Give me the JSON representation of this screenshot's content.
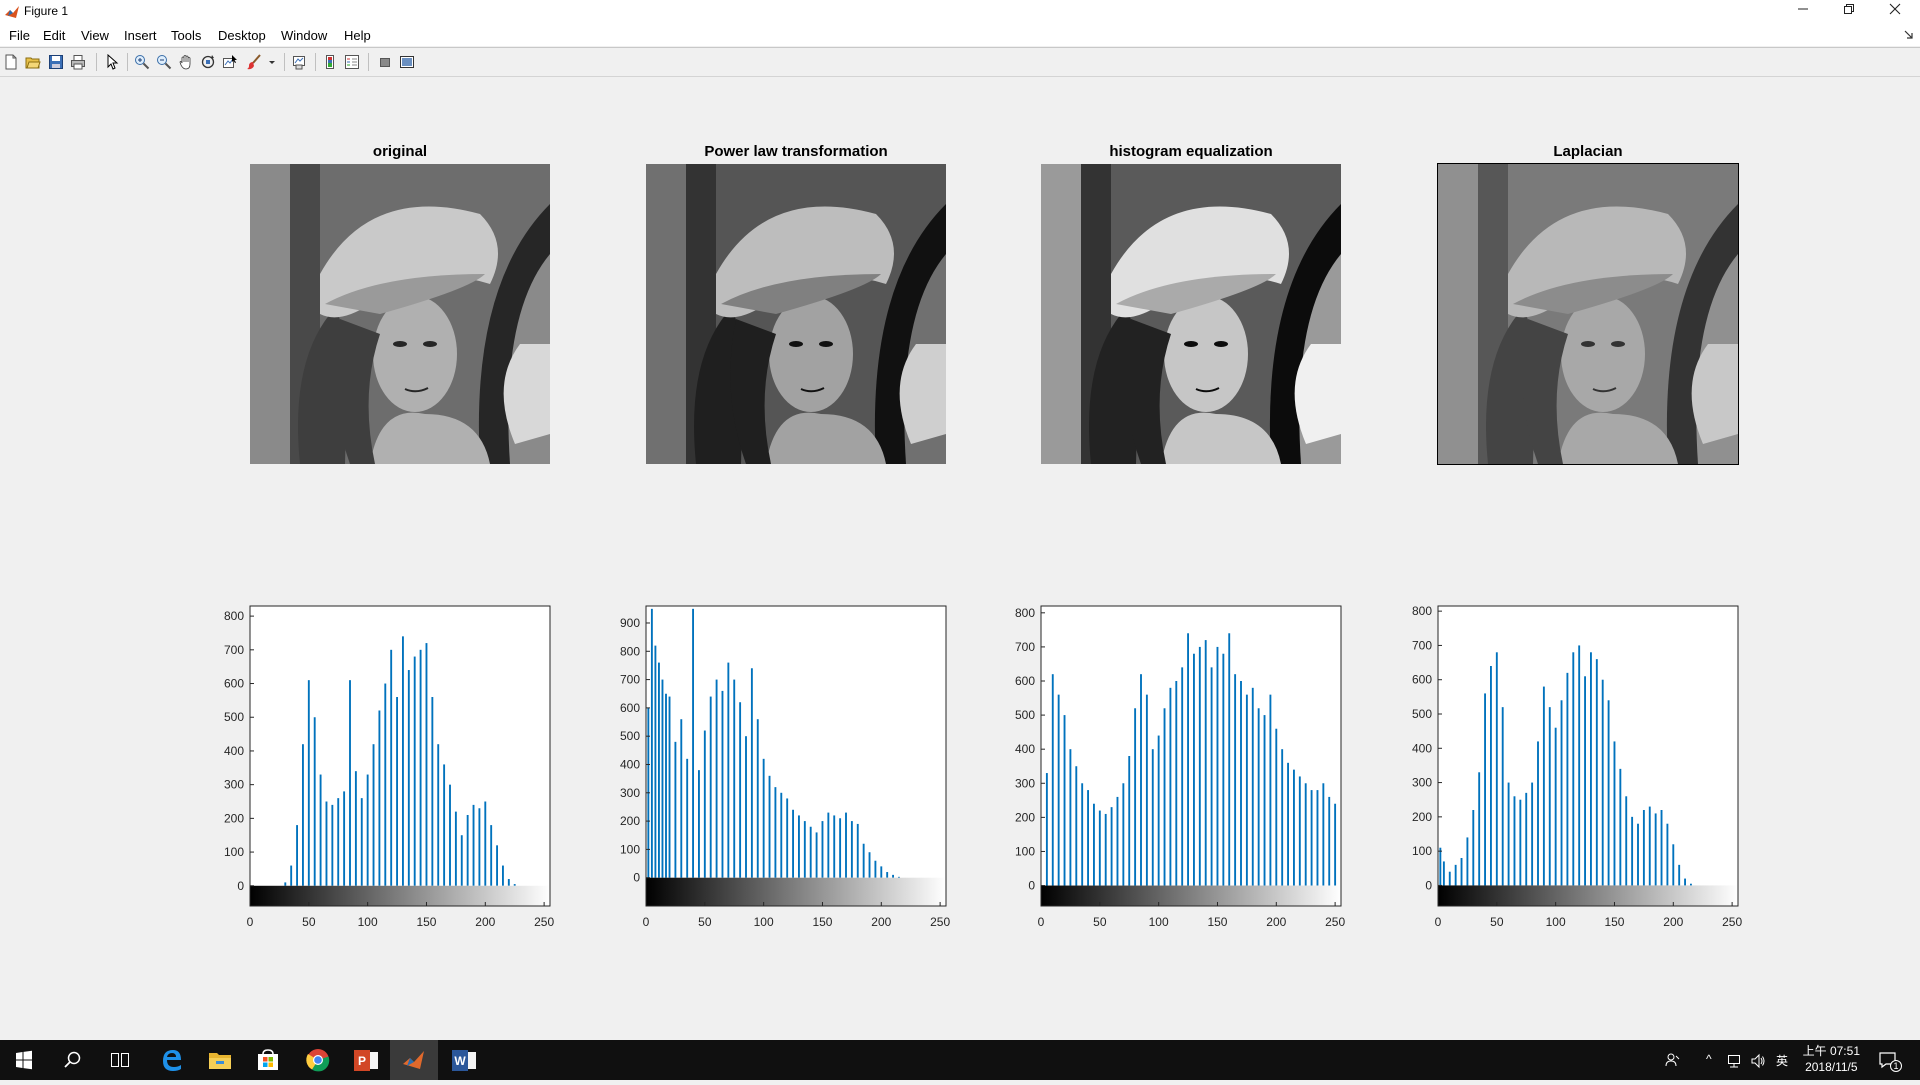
{
  "window": {
    "title": "Figure 1",
    "minimize_icon": "minimize-icon",
    "restore_icon": "restore-icon",
    "close_icon": "close-icon"
  },
  "menu": [
    "File",
    "Edit",
    "View",
    "Insert",
    "Tools",
    "Desktop",
    "Window",
    "Help"
  ],
  "toolbar_icons": [
    "new-figure-icon",
    "open-file-icon",
    "save-icon",
    "print-icon",
    "edit-plot-icon",
    "zoom-in-icon",
    "zoom-out-icon",
    "pan-icon",
    "rotate-3d-icon",
    "data-cursor-icon",
    "brush-icon",
    "link-plot-icon",
    "insert-colorbar-icon",
    "insert-legend-icon",
    "hide-plot-tools-icon",
    "show-plot-tools-icon"
  ],
  "panels": [
    {
      "title": "original"
    },
    {
      "title": "Power law transformation"
    },
    {
      "title": "histogram equalization"
    },
    {
      "title": "Laplacian"
    }
  ],
  "chart_data": [
    {
      "type": "bar",
      "xlim": [
        0,
        255
      ],
      "ylim": [
        -60,
        830
      ],
      "xticks": [
        "0",
        "50",
        "100",
        "150",
        "200",
        "250"
      ],
      "yticks": [
        "0",
        "100",
        "200",
        "300",
        "400",
        "500",
        "600",
        "700",
        "800"
      ],
      "x": [
        25,
        30,
        35,
        40,
        45,
        50,
        55,
        60,
        65,
        70,
        75,
        80,
        85,
        90,
        95,
        100,
        105,
        110,
        115,
        120,
        125,
        130,
        135,
        140,
        145,
        150,
        155,
        160,
        165,
        170,
        175,
        180,
        185,
        190,
        195,
        200,
        205,
        210,
        215,
        220,
        225,
        230
      ],
      "values": [
        0,
        10,
        60,
        180,
        420,
        610,
        500,
        330,
        250,
        240,
        260,
        280,
        610,
        340,
        260,
        330,
        420,
        520,
        600,
        700,
        560,
        740,
        640,
        680,
        700,
        720,
        560,
        420,
        360,
        300,
        220,
        150,
        210,
        240,
        230,
        250,
        180,
        120,
        60,
        20,
        5,
        0
      ]
    },
    {
      "type": "bar",
      "xlim": [
        0,
        255
      ],
      "ylim": [
        -100,
        960
      ],
      "xticks": [
        "0",
        "50",
        "100",
        "150",
        "200",
        "250"
      ],
      "yticks": [
        "0",
        "100",
        "200",
        "300",
        "400",
        "500",
        "600",
        "700",
        "800",
        "900"
      ],
      "x": [
        2,
        5,
        8,
        11,
        14,
        17,
        20,
        25,
        30,
        35,
        40,
        45,
        50,
        55,
        60,
        65,
        70,
        75,
        80,
        85,
        90,
        95,
        100,
        105,
        110,
        115,
        120,
        125,
        130,
        135,
        140,
        145,
        150,
        155,
        160,
        165,
        170,
        175,
        180,
        185,
        190,
        195,
        200,
        205,
        210,
        215,
        220
      ],
      "values": [
        600,
        950,
        820,
        760,
        700,
        650,
        640,
        480,
        560,
        420,
        950,
        380,
        520,
        640,
        700,
        660,
        760,
        700,
        620,
        500,
        740,
        560,
        420,
        360,
        320,
        300,
        280,
        240,
        220,
        200,
        180,
        160,
        200,
        230,
        220,
        210,
        230,
        200,
        190,
        120,
        90,
        60,
        40,
        20,
        10,
        3,
        0
      ]
    },
    {
      "type": "bar",
      "xlim": [
        0,
        255
      ],
      "ylim": [
        -60,
        820
      ],
      "xticks": [
        "0",
        "50",
        "100",
        "150",
        "200",
        "250"
      ],
      "yticks": [
        "0",
        "100",
        "200",
        "300",
        "400",
        "500",
        "600",
        "700",
        "800"
      ],
      "x": [
        5,
        10,
        15,
        20,
        25,
        30,
        35,
        40,
        45,
        50,
        55,
        60,
        65,
        70,
        75,
        80,
        85,
        90,
        95,
        100,
        105,
        110,
        115,
        120,
        125,
        130,
        135,
        140,
        145,
        150,
        155,
        160,
        165,
        170,
        175,
        180,
        185,
        190,
        195,
        200,
        205,
        210,
        215,
        220,
        225,
        230,
        235,
        240,
        245,
        250
      ],
      "values": [
        330,
        620,
        560,
        500,
        400,
        350,
        300,
        280,
        240,
        220,
        210,
        230,
        260,
        300,
        380,
        520,
        620,
        560,
        400,
        440,
        520,
        580,
        600,
        640,
        740,
        680,
        700,
        720,
        640,
        700,
        680,
        740,
        620,
        600,
        560,
        580,
        520,
        500,
        560,
        460,
        400,
        360,
        340,
        320,
        300,
        280,
        280,
        300,
        260,
        240
      ]
    },
    {
      "type": "bar",
      "xlim": [
        0,
        255
      ],
      "ylim": [
        -60,
        815
      ],
      "xticks": [
        "0",
        "50",
        "100",
        "150",
        "200",
        "250"
      ],
      "yticks": [
        "0",
        "100",
        "200",
        "300",
        "400",
        "500",
        "600",
        "700",
        "800"
      ],
      "x": [
        2,
        5,
        10,
        15,
        20,
        25,
        30,
        35,
        40,
        45,
        50,
        55,
        60,
        65,
        70,
        75,
        80,
        85,
        90,
        95,
        100,
        105,
        110,
        115,
        120,
        125,
        130,
        135,
        140,
        145,
        150,
        155,
        160,
        165,
        170,
        175,
        180,
        185,
        190,
        195,
        200,
        205,
        210,
        215,
        220
      ],
      "values": [
        110,
        70,
        40,
        60,
        80,
        140,
        220,
        330,
        560,
        640,
        680,
        520,
        300,
        260,
        250,
        270,
        300,
        420,
        580,
        520,
        460,
        540,
        620,
        680,
        700,
        610,
        680,
        660,
        600,
        540,
        420,
        340,
        260,
        200,
        180,
        220,
        230,
        210,
        220,
        180,
        120,
        60,
        20,
        5,
        0
      ]
    }
  ],
  "taskbar": {
    "icons": [
      "windows-start-icon",
      "search-icon",
      "task-view-icon",
      "edge-icon",
      "file-explorer-icon",
      "store-icon",
      "chrome-icon",
      "powerpoint-icon",
      "matlab-icon",
      "word-icon"
    ],
    "tray_chevron": "^",
    "ime": "英",
    "time": "上午 07:51",
    "date": "2018/11/5",
    "notification_count": "1"
  }
}
